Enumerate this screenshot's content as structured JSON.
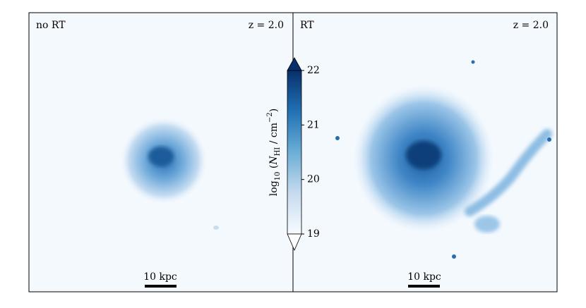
{
  "panels": [
    {
      "label": "no RT",
      "redshift": "z = 2.0",
      "scale_bar": "10 kpc"
    },
    {
      "label": "RT",
      "redshift": "z = 2.0",
      "scale_bar": "10 kpc"
    }
  ],
  "colorbar": {
    "label_parts": [
      "log",
      "10",
      " (",
      "N",
      "HI",
      " / cm",
      "−2",
      ")"
    ],
    "lim": [
      19,
      22
    ],
    "ticks": [
      19,
      20,
      21,
      22
    ],
    "extend": "both"
  }
}
